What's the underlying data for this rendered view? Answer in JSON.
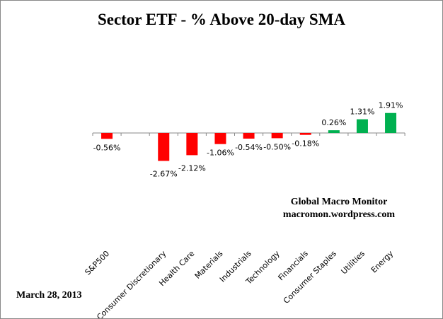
{
  "chart_data": {
    "type": "bar",
    "title": "Sector ETF - % Above 20-day SMA",
    "categories": [
      "S&P500",
      "",
      "Consumer Discretionary",
      "Health Care",
      "Materials",
      "Industrials",
      "Technology",
      "Financials",
      "Consumer Staples",
      "Utilities",
      "Energy"
    ],
    "values": [
      -0.56,
      null,
      -2.67,
      -2.12,
      -1.06,
      -0.54,
      -0.5,
      -0.18,
      0.26,
      1.31,
      1.91
    ],
    "data_labels": [
      "-0.56%",
      "",
      "-2.67%",
      "-2.12%",
      "-1.06%",
      "-0.54%",
      "-0.50%",
      "-0.18%",
      "0.26%",
      "1.31%",
      "1.91%"
    ],
    "xlabel": "",
    "ylabel": "",
    "grid": false,
    "colors": {
      "negative": "#ff0000",
      "positive": "#00b050"
    }
  },
  "annotations": {
    "source_line1": "Global Macro Monitor",
    "source_line2": "macromon.wordpress.com",
    "date": "March 28, 2013"
  }
}
